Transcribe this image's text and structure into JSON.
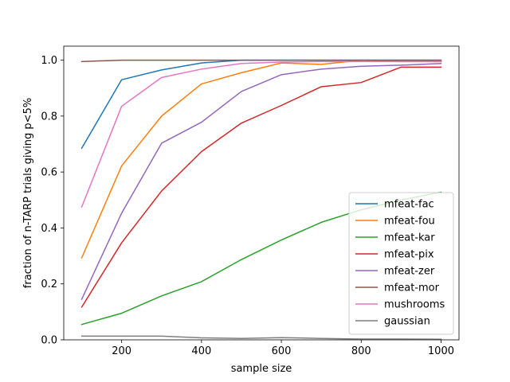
{
  "chart_data": {
    "type": "line",
    "title": "",
    "xlabel": "sample size",
    "ylabel": "fraction of n-TARP trials giving p<5%",
    "xlim": [
      55,
      1045
    ],
    "ylim": [
      0,
      1.05
    ],
    "xticks": [
      200,
      400,
      600,
      800,
      1000
    ],
    "yticks": [
      0.0,
      0.2,
      0.4,
      0.6,
      0.8,
      1.0
    ],
    "ytick_labels": [
      "0.0",
      "0.2",
      "0.4",
      "0.6",
      "0.8",
      "1.0"
    ],
    "legend_position": "lower-right",
    "grid": false,
    "x": [
      100,
      200,
      300,
      400,
      500,
      600,
      700,
      800,
      900,
      1000
    ],
    "series": [
      {
        "name": "mfeat-fac",
        "color": "#1f77b4",
        "values": [
          0.685,
          0.93,
          0.965,
          0.99,
          1.0,
          1.0,
          1.0,
          1.0,
          1.0,
          1.0
        ]
      },
      {
        "name": "mfeat-fou",
        "color": "#ff7f0e",
        "values": [
          0.293,
          0.622,
          0.8,
          0.915,
          0.955,
          0.99,
          0.985,
          1.0,
          0.995,
          0.995
        ]
      },
      {
        "name": "mfeat-kar",
        "color": "#2ca02c",
        "values": [
          0.055,
          0.095,
          0.157,
          0.208,
          0.287,
          0.357,
          0.42,
          0.465,
          0.5,
          0.528
        ]
      },
      {
        "name": "mfeat-pix",
        "color": "#d62728",
        "values": [
          0.117,
          0.347,
          0.532,
          0.673,
          0.775,
          0.838,
          0.905,
          0.92,
          0.975,
          0.975
        ]
      },
      {
        "name": "mfeat-zer",
        "color": "#9467bd",
        "values": [
          0.145,
          0.453,
          0.703,
          0.778,
          0.888,
          0.948,
          0.968,
          0.978,
          0.982,
          0.988
        ]
      },
      {
        "name": "mfeat-mor",
        "color": "#8c564b",
        "values": [
          0.995,
          1.0,
          1.0,
          1.0,
          1.0,
          1.0,
          1.0,
          1.0,
          1.0,
          1.0
        ]
      },
      {
        "name": "mushrooms",
        "color": "#e377c2",
        "values": [
          0.475,
          0.835,
          0.938,
          0.968,
          0.988,
          0.993,
          0.995,
          0.995,
          0.995,
          0.995
        ]
      },
      {
        "name": "gaussian",
        "color": "#7f7f7f",
        "values": [
          0.013,
          0.013,
          0.013,
          0.007,
          0.005,
          0.008,
          0.005,
          0.003,
          0.003,
          0.002
        ]
      }
    ]
  }
}
